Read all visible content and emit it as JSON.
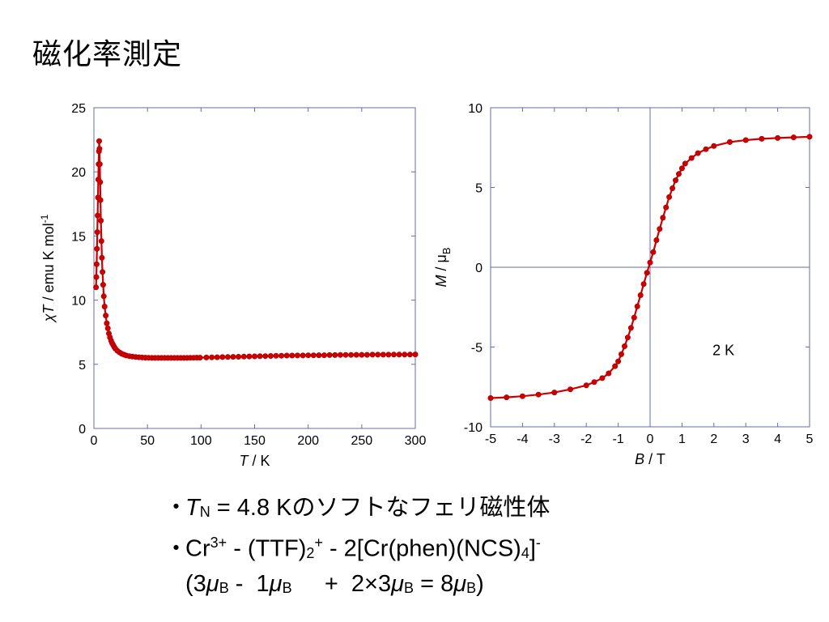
{
  "title": "磁化率測定",
  "chart_data": [
    {
      "type": "scatter",
      "xlabel_var": "T",
      "xlabel_unit": " / K",
      "ylabel_var_prefix": "χ",
      "ylabel_var": "T",
      "ylabel_unit": " / emu K mol",
      "ylabel_sup": "-1",
      "xlim": [
        0,
        300
      ],
      "ylim": [
        0,
        25
      ],
      "xticks": [
        0,
        50,
        100,
        150,
        200,
        250,
        300
      ],
      "yticks": [
        0,
        5,
        10,
        15,
        20,
        25
      ],
      "grid": false,
      "color": "#cc0000",
      "series": [
        {
          "x": [
            2,
            2.3,
            2.6,
            2.9,
            3.2,
            3.5,
            3.8,
            4.1,
            4.4,
            4.7,
            4.9,
            5.2,
            5.5,
            5.8,
            6.1,
            6.5,
            7,
            7.5,
            8,
            8.6,
            9.2,
            10,
            11,
            12,
            13,
            14,
            15,
            16,
            17,
            18,
            19,
            20,
            22,
            24,
            26,
            28,
            30,
            33,
            36,
            39,
            42,
            45,
            48,
            51,
            54,
            57,
            60,
            63,
            66,
            69,
            72,
            75,
            78,
            81,
            84,
            87,
            90,
            93,
            96,
            99,
            105,
            110,
            115,
            120,
            125,
            130,
            135,
            140,
            145,
            150,
            155,
            160,
            165,
            170,
            175,
            180,
            185,
            190,
            195,
            200,
            205,
            210,
            215,
            220,
            225,
            230,
            235,
            240,
            245,
            250,
            255,
            260,
            265,
            270,
            275,
            280,
            285,
            290,
            295,
            300
          ],
          "y": [
            11.0,
            11.8,
            12.8,
            14.0,
            15.3,
            16.6,
            18.0,
            19.4,
            20.6,
            21.6,
            22.4,
            21.8,
            20.6,
            19.2,
            17.8,
            16.2,
            14.6,
            13.3,
            12.2,
            11.2,
            10.3,
            9.5,
            8.8,
            8.2,
            7.8,
            7.4,
            7.1,
            6.85,
            6.65,
            6.5,
            6.35,
            6.22,
            6.05,
            5.92,
            5.82,
            5.75,
            5.69,
            5.64,
            5.6,
            5.57,
            5.55,
            5.53,
            5.52,
            5.51,
            5.5,
            5.5,
            5.5,
            5.5,
            5.5,
            5.5,
            5.5,
            5.5,
            5.5,
            5.5,
            5.5,
            5.5,
            5.51,
            5.51,
            5.52,
            5.52,
            5.53,
            5.54,
            5.55,
            5.56,
            5.57,
            5.58,
            5.59,
            5.6,
            5.61,
            5.62,
            5.63,
            5.64,
            5.65,
            5.66,
            5.67,
            5.68,
            5.68,
            5.69,
            5.69,
            5.7,
            5.7,
            5.71,
            5.71,
            5.72,
            5.72,
            5.73,
            5.73,
            5.73,
            5.74,
            5.74,
            5.74,
            5.75,
            5.75,
            5.75,
            5.75,
            5.76,
            5.76,
            5.76,
            5.76,
            5.77
          ]
        }
      ]
    },
    {
      "type": "line",
      "xlabel_var": "B",
      "xlabel_unit": " / T",
      "ylabel_var": "M",
      "ylabel_unit": " / μ",
      "ylabel_sub": "B",
      "xlim": [
        -5,
        5
      ],
      "ylim": [
        -10,
        10
      ],
      "xticks": [
        -5,
        -4,
        -3,
        -2,
        -1,
        0,
        1,
        2,
        3,
        4,
        5
      ],
      "yticks": [
        -10,
        -5,
        0,
        5,
        10
      ],
      "grid": false,
      "color": "#cc0000",
      "annotation": "2 K",
      "series": [
        {
          "x": [
            -5.0,
            -4.5,
            -4.0,
            -3.5,
            -3.0,
            -2.5,
            -2.0,
            -1.75,
            -1.5,
            -1.3,
            -1.1,
            -1.0,
            -0.9,
            -0.8,
            -0.7,
            -0.6,
            -0.5,
            -0.4,
            -0.3,
            -0.2,
            -0.1,
            0.0,
            0.1,
            0.2,
            0.3,
            0.4,
            0.5,
            0.6,
            0.7,
            0.8,
            0.9,
            1.0,
            1.1,
            1.3,
            1.5,
            1.75,
            2.0,
            2.5,
            3.0,
            3.5,
            4.0,
            4.5,
            5.0
          ],
          "y": [
            -8.2,
            -8.15,
            -8.08,
            -7.98,
            -7.85,
            -7.65,
            -7.4,
            -7.2,
            -6.95,
            -6.65,
            -6.2,
            -5.9,
            -5.45,
            -4.95,
            -4.4,
            -3.8,
            -3.15,
            -2.45,
            -1.75,
            -1.05,
            -0.35,
            0.3,
            0.95,
            1.7,
            2.4,
            3.1,
            3.75,
            4.4,
            4.95,
            5.45,
            5.85,
            6.2,
            6.5,
            6.85,
            7.15,
            7.4,
            7.6,
            7.85,
            7.97,
            8.05,
            8.1,
            8.14,
            8.18
          ]
        }
      ]
    }
  ],
  "bullets": {
    "marker": "・",
    "line1": {
      "var": "T",
      "sub": "N",
      "text": " = 4.8 K",
      "jp": "のソフトなフェリ磁性体"
    },
    "line2": {
      "a": "Cr",
      "a_sup": "3+",
      "b": " - (TTF)",
      "b_sub": "2",
      "b_sup": "+",
      "c": " - 2[Cr(phen)(NCS)",
      "c_sub": "4",
      "c_end": "]",
      "c_sup": "-"
    },
    "line3": {
      "open": "(3",
      "mu1": "μ",
      "sub1": "B",
      "mid1": " -  1",
      "mu2": "μ",
      "sub2": "B",
      "mid2": "     +  2×3",
      "mu3": "μ",
      "sub3": "B",
      "mid3": " = 8",
      "mu4": "μ",
      "sub4": "B",
      "close": ")"
    }
  }
}
